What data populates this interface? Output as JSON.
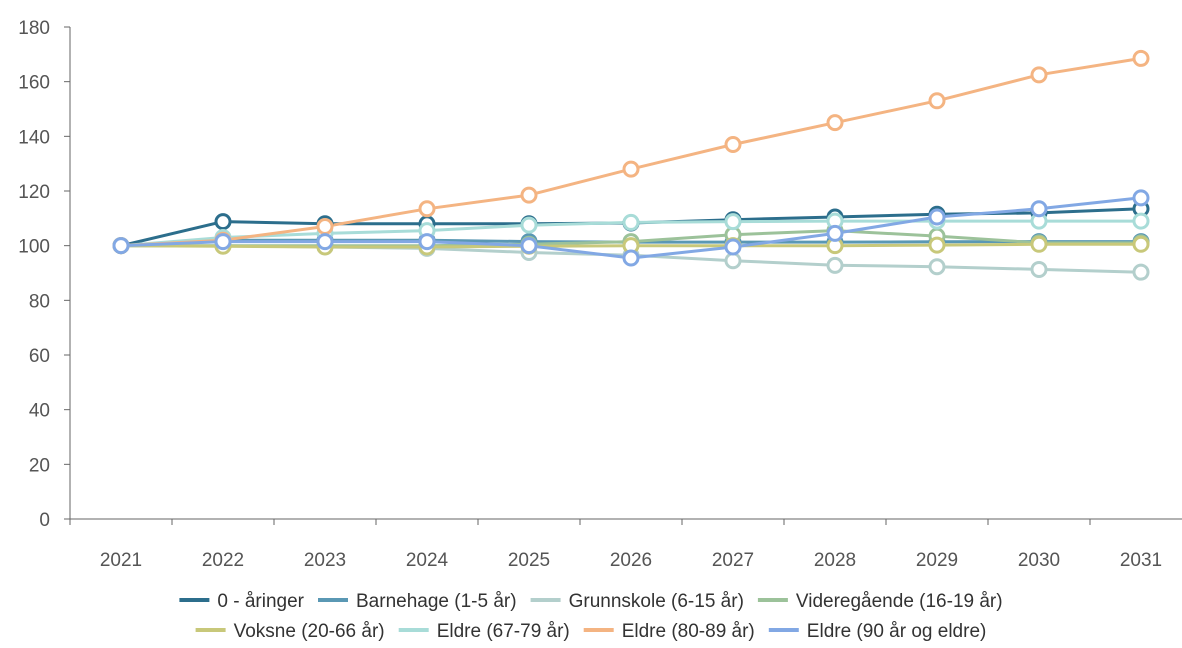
{
  "chart_data": {
    "type": "line",
    "title": "",
    "xlabel": "",
    "ylabel": "",
    "x": [
      "2021",
      "2022",
      "2023",
      "2024",
      "2025",
      "2026",
      "2027",
      "2028",
      "2029",
      "2030",
      "2031"
    ],
    "ylim": [
      0,
      180
    ],
    "yticks": [
      0,
      20,
      40,
      60,
      80,
      100,
      120,
      140,
      160,
      180
    ],
    "grid": false,
    "legend_position": "bottom",
    "series": [
      {
        "name": "0 - åringer",
        "color": "#2c6e8c",
        "values": [
          100,
          108.8,
          108,
          108,
          108,
          108.3,
          109.5,
          110.5,
          111.5,
          112,
          113.5
        ]
      },
      {
        "name": "Barnehage (1-5 år)",
        "color": "#5a98b4",
        "values": [
          100,
          102,
          102,
          102,
          101.5,
          101.3,
          101.3,
          101.3,
          101.4,
          101.5,
          101.5
        ]
      },
      {
        "name": "Grunnskole (6-15 år)",
        "color": "#b3cfcc",
        "values": [
          100,
          100,
          99.5,
          99,
          97.5,
          96.5,
          94.5,
          92.8,
          92.3,
          91.3,
          90.3
        ]
      },
      {
        "name": "Videregående (16-19 år)",
        "color": "#9cc29a",
        "values": [
          100,
          100,
          100,
          100,
          100.5,
          101.5,
          104,
          105.5,
          103.5,
          101,
          101
        ]
      },
      {
        "name": "Voksne (20-66 år)",
        "color": "#c8c87a",
        "values": [
          100,
          99.8,
          99.5,
          99.5,
          99.8,
          100,
          100,
          100,
          100.2,
          100.5,
          100.5
        ]
      },
      {
        "name": "Eldre (67-79 år)",
        "color": "#a8dcd8",
        "values": [
          100,
          103,
          104.5,
          105.5,
          107.5,
          108.5,
          108.8,
          109,
          109,
          109,
          109
        ]
      },
      {
        "name": "Eldre (80-89 år)",
        "color": "#f4b482",
        "values": [
          100,
          102,
          107,
          113.5,
          118.5,
          128,
          137,
          145,
          153,
          162.5,
          168.5
        ]
      },
      {
        "name": "Eldre (90 år og eldre)",
        "color": "#82a8e4",
        "values": [
          100,
          101.5,
          101.5,
          101.5,
          100,
          95.5,
          99.5,
          104.5,
          110.5,
          113.5,
          117.5
        ]
      }
    ]
  }
}
